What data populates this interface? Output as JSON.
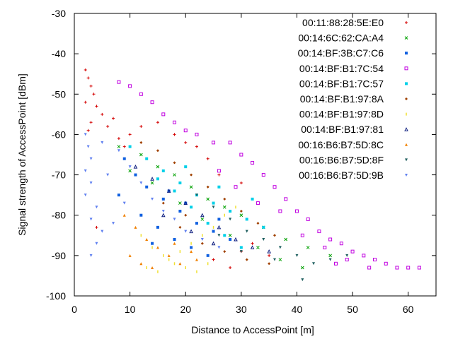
{
  "chart_data": {
    "type": "scatter",
    "title": "",
    "xlabel": "Distance to AccessPoint [m]",
    "ylabel": "Signal strength of AccessPoint [dBm]",
    "xlim": [
      0,
      65
    ],
    "ylim": [
      -100,
      -30
    ],
    "xticks": [
      0,
      10,
      20,
      30,
      40,
      50,
      60
    ],
    "yticks": [
      -100,
      -90,
      -80,
      -70,
      -60,
      -50,
      -40,
      -30
    ],
    "grid": false,
    "legend_position": "top-right",
    "series": [
      {
        "name": "00:11:88:28:5E:E0",
        "color": "#d40000",
        "marker": "plus",
        "points": [
          [
            2,
            -44
          ],
          [
            2.5,
            -46
          ],
          [
            3,
            -48
          ],
          [
            3.5,
            -50
          ],
          [
            2,
            -52
          ],
          [
            4,
            -53
          ],
          [
            5,
            -55
          ],
          [
            3,
            -57
          ],
          [
            6,
            -58
          ],
          [
            2.5,
            -59
          ],
          [
            7,
            -56
          ],
          [
            8,
            -61
          ],
          [
            10,
            -60
          ],
          [
            12,
            -58
          ],
          [
            15,
            -57
          ],
          [
            18,
            -60
          ],
          [
            20,
            -62
          ],
          [
            22,
            -63
          ],
          [
            24,
            -66
          ],
          [
            26,
            -70
          ],
          [
            30,
            -72
          ],
          [
            9,
            -63
          ],
          [
            4,
            -83
          ],
          [
            30,
            -89
          ],
          [
            35,
            -90
          ],
          [
            32,
            -87
          ],
          [
            25,
            -91
          ],
          [
            28,
            -93
          ]
        ]
      },
      {
        "name": "00:14:6C:62:CA:A4",
        "color": "#00a000",
        "marker": "cross",
        "points": [
          [
            8,
            -63
          ],
          [
            12,
            -65
          ],
          [
            15,
            -68
          ],
          [
            18,
            -70
          ],
          [
            21,
            -73
          ],
          [
            24,
            -76
          ],
          [
            27,
            -78
          ],
          [
            30,
            -80
          ],
          [
            34,
            -83
          ],
          [
            38,
            -86
          ],
          [
            42,
            -88
          ],
          [
            46,
            -90
          ],
          [
            10,
            -69
          ],
          [
            14,
            -72
          ],
          [
            19,
            -77
          ],
          [
            23,
            -81
          ],
          [
            28,
            -85
          ],
          [
            33,
            -88
          ],
          [
            37,
            -91
          ],
          [
            41,
            -93
          ]
        ]
      },
      {
        "name": "00:14:BF:3B:C7:C6",
        "color": "#1060e0",
        "marker": "square-filled",
        "points": [
          [
            9,
            -66
          ],
          [
            11,
            -70
          ],
          [
            13,
            -73
          ],
          [
            16,
            -76
          ],
          [
            19,
            -79
          ],
          [
            22,
            -82
          ],
          [
            25,
            -84
          ],
          [
            28,
            -86
          ],
          [
            12,
            -80
          ],
          [
            15,
            -83
          ],
          [
            18,
            -86
          ],
          [
            21,
            -88
          ],
          [
            24,
            -90
          ],
          [
            17,
            -74
          ],
          [
            20,
            -77
          ],
          [
            26,
            -81
          ],
          [
            8,
            -75
          ],
          [
            14,
            -87
          ]
        ]
      },
      {
        "name": "00:14:BF:B1:7C:54",
        "color": "#c000e0",
        "marker": "square-open",
        "points": [
          [
            8,
            -47
          ],
          [
            10,
            -48
          ],
          [
            12,
            -50
          ],
          [
            14,
            -52
          ],
          [
            16,
            -55
          ],
          [
            18,
            -57
          ],
          [
            20,
            -59
          ],
          [
            22,
            -60
          ],
          [
            25,
            -62
          ],
          [
            28,
            -62
          ],
          [
            30,
            -65
          ],
          [
            32,
            -67
          ],
          [
            34,
            -70
          ],
          [
            36,
            -73
          ],
          [
            38,
            -76
          ],
          [
            40,
            -79
          ],
          [
            42,
            -81
          ],
          [
            44,
            -84
          ],
          [
            46,
            -86
          ],
          [
            48,
            -87
          ],
          [
            50,
            -89
          ],
          [
            52,
            -90
          ],
          [
            54,
            -91
          ],
          [
            56,
            -92
          ],
          [
            58,
            -93
          ],
          [
            60,
            -93
          ],
          [
            62,
            -93
          ],
          [
            37,
            -79
          ],
          [
            41,
            -85
          ],
          [
            45,
            -88
          ],
          [
            49,
            -91
          ],
          [
            53,
            -93
          ],
          [
            26,
            -69
          ],
          [
            29,
            -73
          ],
          [
            33,
            -77
          ],
          [
            47,
            -92
          ]
        ]
      },
      {
        "name": "00:14:BF:B1:7C:57",
        "color": "#00d0e8",
        "marker": "square-filled",
        "points": [
          [
            10,
            -63
          ],
          [
            13,
            -66
          ],
          [
            16,
            -69
          ],
          [
            19,
            -72
          ],
          [
            22,
            -75
          ],
          [
            25,
            -77
          ],
          [
            28,
            -79
          ],
          [
            31,
            -81
          ],
          [
            34,
            -83
          ],
          [
            15,
            -71
          ],
          [
            18,
            -74
          ],
          [
            21,
            -78
          ],
          [
            24,
            -82
          ],
          [
            27,
            -85
          ],
          [
            30,
            -88
          ],
          [
            20,
            -68
          ],
          [
            26,
            -73
          ],
          [
            32,
            -76
          ]
        ]
      },
      {
        "name": "00:14:BF:B1:97:8A",
        "color": "#a04000",
        "marker": "diamond",
        "points": [
          [
            12,
            -62
          ],
          [
            15,
            -64
          ],
          [
            18,
            -67
          ],
          [
            21,
            -70
          ],
          [
            24,
            -73
          ],
          [
            27,
            -76
          ],
          [
            30,
            -79
          ],
          [
            33,
            -82
          ],
          [
            36,
            -85
          ],
          [
            19,
            -83
          ],
          [
            23,
            -87
          ],
          [
            27,
            -89
          ],
          [
            31,
            -91
          ],
          [
            35,
            -92
          ],
          [
            16,
            -77
          ],
          [
            20,
            -80
          ]
        ]
      },
      {
        "name": "00:14:BF:B1:97:8D",
        "color": "#f0e030",
        "marker": "vbar",
        "points": [
          [
            12,
            -85
          ],
          [
            14,
            -88
          ],
          [
            16,
            -90
          ],
          [
            18,
            -92
          ],
          [
            20,
            -93
          ],
          [
            22,
            -94
          ],
          [
            24,
            -92
          ],
          [
            13,
            -93
          ],
          [
            15,
            -94
          ],
          [
            17,
            -91
          ],
          [
            19,
            -89
          ],
          [
            21,
            -87
          ],
          [
            23,
            -85
          ],
          [
            25,
            -83
          ],
          [
            27,
            -80
          ],
          [
            29,
            -78
          ]
        ]
      },
      {
        "name": "00:14:BF:B1:97:81",
        "color": "#102080",
        "marker": "triangle-up-open",
        "points": [
          [
            11,
            -68
          ],
          [
            14,
            -71
          ],
          [
            17,
            -74
          ],
          [
            20,
            -77
          ],
          [
            23,
            -80
          ],
          [
            26,
            -83
          ],
          [
            29,
            -86
          ],
          [
            32,
            -88
          ],
          [
            35,
            -89
          ],
          [
            16,
            -80
          ],
          [
            21,
            -84
          ],
          [
            25,
            -87
          ]
        ]
      },
      {
        "name": "00:16:B6:B7:5D:8C",
        "color": "#f08000",
        "marker": "triangle-up",
        "points": [
          [
            9,
            -80
          ],
          [
            11,
            -83
          ],
          [
            13,
            -86
          ],
          [
            15,
            -88
          ],
          [
            17,
            -90
          ],
          [
            19,
            -92
          ],
          [
            21,
            -89
          ],
          [
            10,
            -90
          ],
          [
            12,
            -92
          ],
          [
            14,
            -93
          ],
          [
            18,
            -87
          ],
          [
            22,
            -91
          ]
        ]
      },
      {
        "name": "00:16:B6:B7:5D:8F",
        "color": "#206060",
        "marker": "triangle-down",
        "points": [
          [
            22,
            -75
          ],
          [
            25,
            -78
          ],
          [
            28,
            -81
          ],
          [
            31,
            -84
          ],
          [
            34,
            -86
          ],
          [
            37,
            -88
          ],
          [
            40,
            -90
          ],
          [
            43,
            -92
          ],
          [
            46,
            -91
          ],
          [
            49,
            -90
          ],
          [
            41,
            -96
          ],
          [
            30,
            -89
          ],
          [
            36,
            -91
          ],
          [
            26,
            -85
          ]
        ]
      },
      {
        "name": "00:16:B6:B7:5D:9B",
        "color": "#6080f0",
        "marker": "triangle-down",
        "points": [
          [
            2,
            -60
          ],
          [
            2.5,
            -63
          ],
          [
            3,
            -66
          ],
          [
            2,
            -69
          ],
          [
            3,
            -72
          ],
          [
            2,
            -75
          ],
          [
            4,
            -78
          ],
          [
            3,
            -81
          ],
          [
            5,
            -84
          ],
          [
            4,
            -87
          ],
          [
            6,
            -70
          ],
          [
            5,
            -62
          ],
          [
            8,
            -64
          ],
          [
            10,
            -68
          ],
          [
            12,
            -72
          ],
          [
            14,
            -76
          ],
          [
            16,
            -79
          ],
          [
            18,
            -81
          ],
          [
            20,
            -84
          ],
          [
            23,
            -86
          ],
          [
            26,
            -88
          ],
          [
            3,
            -90
          ],
          [
            7,
            -82
          ],
          [
            9,
            -77
          ]
        ]
      }
    ]
  }
}
